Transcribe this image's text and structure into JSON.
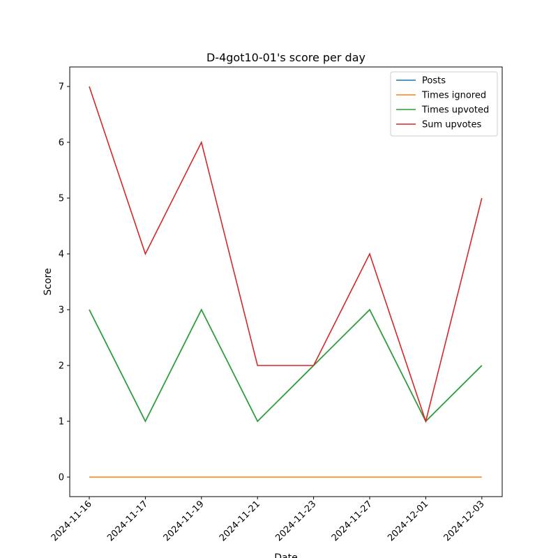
{
  "chart_data": {
    "type": "line",
    "title": "D-4got10-01's score per day",
    "xlabel": "Date",
    "ylabel": "Score",
    "x": [
      "2024-11-16",
      "2024-11-17",
      "2024-11-19",
      "2024-11-21",
      "2024-11-23",
      "2024-11-27",
      "2024-12-01",
      "2024-12-03"
    ],
    "ylim": [
      -0.35,
      7.35
    ],
    "yticks": [
      0,
      1,
      2,
      3,
      4,
      5,
      6,
      7
    ],
    "grid": false,
    "legend_position": "top-right",
    "series": [
      {
        "name": "Posts",
        "color": "#1f77b4",
        "values": [
          3,
          1,
          3,
          1,
          2,
          3,
          1,
          2
        ]
      },
      {
        "name": "Times ignored",
        "color": "#ff7f0e",
        "values": [
          0,
          0,
          0,
          0,
          0,
          0,
          0,
          0
        ]
      },
      {
        "name": "Times upvoted",
        "color": "#2ca02c",
        "values": [
          3,
          1,
          3,
          1,
          2,
          3,
          1,
          2
        ]
      },
      {
        "name": "Sum upvotes",
        "color": "#d62728",
        "values": [
          7,
          4,
          6,
          2,
          2,
          4,
          1,
          5
        ]
      }
    ]
  }
}
